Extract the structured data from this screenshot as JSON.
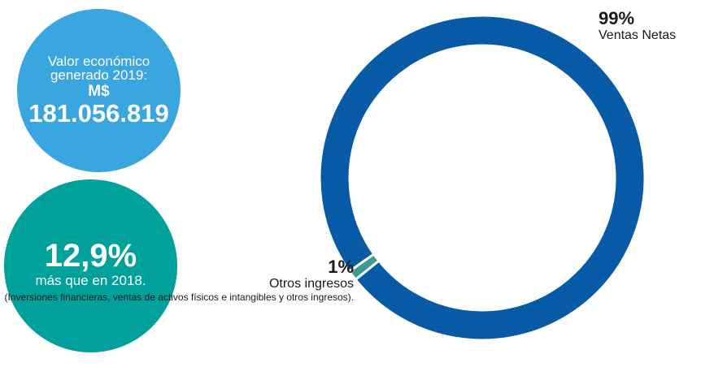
{
  "kpis": {
    "economic": {
      "label": "Valor económico generado 2019:",
      "currency": "M$",
      "value": "181.056.819",
      "color": "#3aa6e0"
    },
    "growth": {
      "percent": "12,9%",
      "text": "más que en 2018.",
      "color": "#00a19a"
    }
  },
  "chart_data": {
    "type": "pie",
    "style": "donut",
    "categories": [
      "Ventas Netas",
      "Otros ingresos"
    ],
    "values": [
      99,
      1
    ],
    "value_labels": [
      "99%",
      "1%"
    ],
    "notes": [
      "",
      "(Inversiones financieras, ventas de activos físicos e intangibles y otros ingresos)."
    ],
    "colors": [
      "#075ba6",
      "#3f9a8f"
    ]
  }
}
